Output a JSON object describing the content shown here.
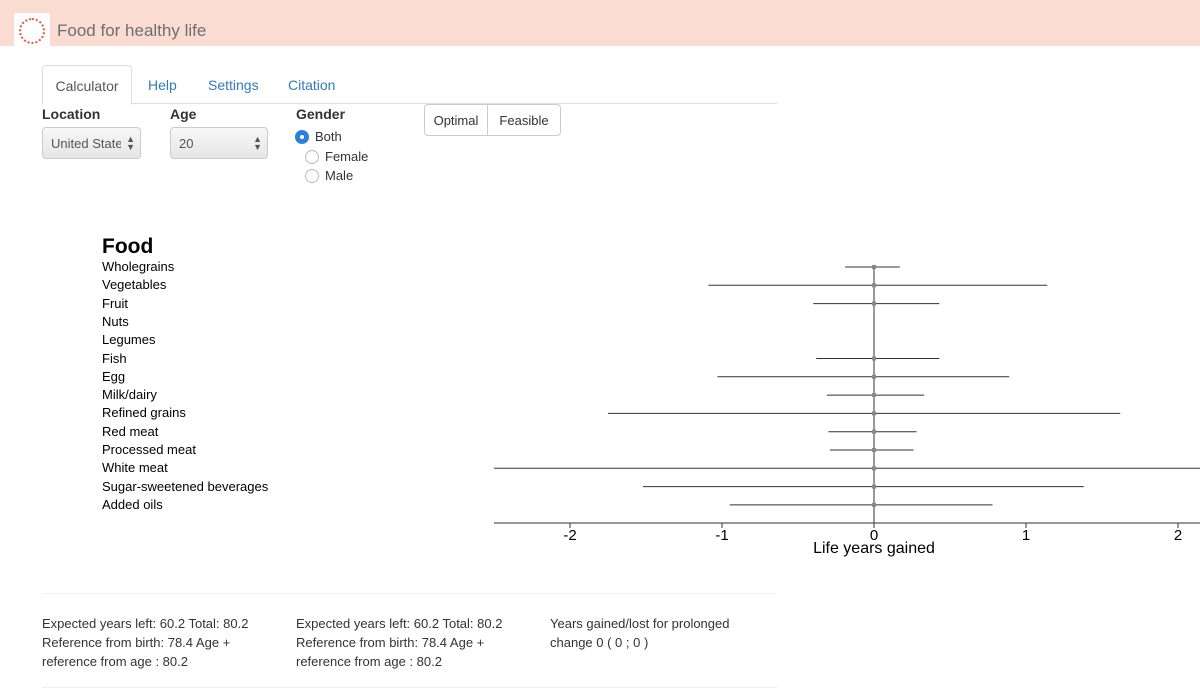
{
  "app": {
    "title": "Food for healthy life",
    "logo_icon": "dotted-circle-logo-icon"
  },
  "tabs": [
    {
      "label": "Calculator",
      "active": true
    },
    {
      "label": "Help",
      "active": false
    },
    {
      "label": "Settings",
      "active": false
    },
    {
      "label": "Citation",
      "active": false
    }
  ],
  "controls": {
    "location": {
      "label": "Location",
      "value": "United States"
    },
    "age": {
      "label": "Age",
      "value": "20"
    },
    "gender": {
      "label": "Gender",
      "options": [
        "Both",
        "Female",
        "Male"
      ],
      "selected": "Both"
    },
    "mode_buttons": [
      "Optimal",
      "Feasible"
    ]
  },
  "chart_data": {
    "type": "forest",
    "title": "Food",
    "xlabel": "Life years gained",
    "xlim": [
      -2.5,
      2.15
    ],
    "ticks": [
      -2,
      -1,
      0,
      1,
      2
    ],
    "tick_labels": [
      "-2",
      "-1",
      "0",
      "1",
      "2"
    ],
    "reference_line": 0,
    "colors": {
      "line": "#333333",
      "point": "#888888"
    },
    "rows": [
      {
        "food": "Wholegrains",
        "estimate": 0,
        "lower": -0.19,
        "upper": 0.17
      },
      {
        "food": "Vegetables",
        "estimate": 0,
        "lower": -1.09,
        "upper": 1.14
      },
      {
        "food": "Fruit",
        "estimate": 0,
        "lower": -0.4,
        "upper": 0.43
      },
      {
        "food": "Nuts",
        "estimate": null,
        "lower": null,
        "upper": null
      },
      {
        "food": "Legumes",
        "estimate": null,
        "lower": null,
        "upper": null
      },
      {
        "food": "Fish",
        "estimate": 0,
        "lower": -0.38,
        "upper": 0.43
      },
      {
        "food": "Egg",
        "estimate": 0,
        "lower": -1.03,
        "upper": 0.89
      },
      {
        "food": "Milk/dairy",
        "estimate": 0,
        "lower": -0.31,
        "upper": 0.33
      },
      {
        "food": "Refined grains",
        "estimate": 0,
        "lower": -1.75,
        "upper": 1.62
      },
      {
        "food": "Red meat",
        "estimate": 0,
        "lower": -0.3,
        "upper": 0.28
      },
      {
        "food": "Processed meat",
        "estimate": 0,
        "lower": -0.29,
        "upper": 0.26
      },
      {
        "food": "White meat",
        "estimate": 0,
        "lower": -2.5,
        "upper": 2.15
      },
      {
        "food": "Sugar-sweetened beverages",
        "estimate": 0,
        "lower": -1.52,
        "upper": 1.38
      },
      {
        "food": "Added oils",
        "estimate": 0,
        "lower": -0.95,
        "upper": 0.78
      }
    ]
  },
  "results": [
    "Expected years left: 60.2 Total: 80.2 Reference from birth: 78.4 Age + reference from age : 80.2",
    "Expected years left: 60.2 Total: 80.2 Reference from birth: 78.4 Age + reference from age : 80.2",
    "Years gained/lost for prolonged change 0 ( 0 ; 0 )"
  ]
}
